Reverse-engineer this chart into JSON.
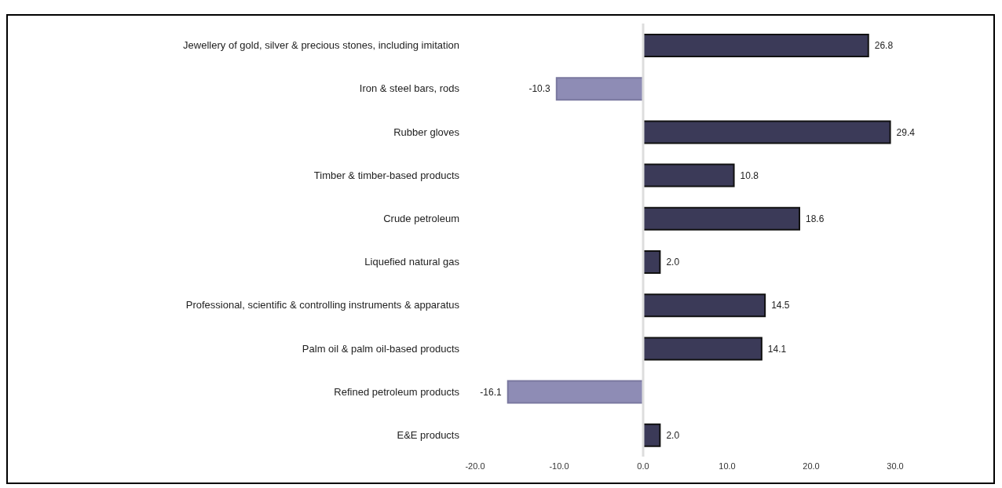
{
  "chart_data": {
    "type": "bar",
    "orientation": "horizontal",
    "categories": [
      "Jewellery of gold, silver & precious stones, including imitation",
      "Iron & steel bars, rods",
      "Rubber gloves",
      "Timber & timber-based products",
      "Crude petroleum",
      "Liquefied natural gas",
      "Professional, scientific & controlling instruments & apparatus",
      "Palm oil & palm oil-based products",
      "Refined petroleum products",
      "E&E products"
    ],
    "values": [
      26.8,
      -10.3,
      29.4,
      10.8,
      18.6,
      2.0,
      14.5,
      14.1,
      -16.1,
      2.0
    ],
    "value_labels": [
      "26.8",
      "-10.3",
      "29.4",
      "10.8",
      "18.6",
      "2.0",
      "14.5",
      "14.1",
      "-16.1",
      "2.0"
    ],
    "colors": [
      "#3b3a58",
      "#8e8cb5",
      "#3b3a58",
      "#3b3a58",
      "#3b3a58",
      "#3b3a58",
      "#3b3a58",
      "#3b3a58",
      "#8e8cb5",
      "#3b3a58"
    ],
    "xlim": [
      -20,
      30
    ],
    "xticks": [
      {
        "value": -20,
        "label": "-20.0"
      },
      {
        "value": -10,
        "label": "-10.0"
      },
      {
        "value": 0,
        "label": "0.0"
      },
      {
        "value": 10,
        "label": "10.0"
      },
      {
        "value": 20,
        "label": "20.0"
      },
      {
        "value": 30,
        "label": "30.0"
      }
    ],
    "ref_lines": [
      {
        "axis": "x",
        "value": 0,
        "color": "#dddddd"
      }
    ],
    "grid": false
  }
}
